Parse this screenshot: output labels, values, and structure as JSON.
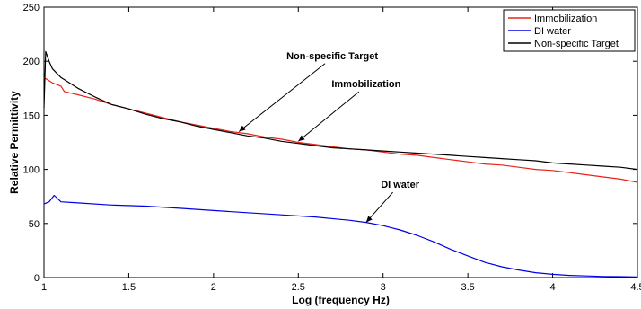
{
  "chart_data": {
    "type": "line",
    "title": "",
    "xlabel": "Log (frequency Hz)",
    "ylabel": "Relative Permittivity",
    "xlim": [
      1,
      4.5
    ],
    "ylim": [
      0,
      250
    ],
    "xticks": [
      1,
      1.5,
      2,
      2.5,
      3,
      3.5,
      4,
      4.5
    ],
    "xtick_labels": [
      "1",
      "1.5",
      "2",
      "2.5",
      "3",
      "3.5",
      "4",
      "4.5"
    ],
    "yticks": [
      0,
      50,
      100,
      150,
      200,
      250
    ],
    "ytick_labels": [
      "0",
      "50",
      "100",
      "150",
      "200",
      "250"
    ],
    "grid": false,
    "legend_position": "top-right",
    "series": [
      {
        "name": "Immobilization",
        "color": "#e8231c",
        "x": [
          1.0,
          1.05,
          1.1,
          1.12,
          1.2,
          1.3,
          1.4,
          1.5,
          1.6,
          1.7,
          1.8,
          1.9,
          2.0,
          2.1,
          2.2,
          2.3,
          2.4,
          2.5,
          2.6,
          2.7,
          2.8,
          2.9,
          3.0,
          3.1,
          3.2,
          3.3,
          3.4,
          3.5,
          3.6,
          3.7,
          3.8,
          3.9,
          4.0,
          4.1,
          4.2,
          4.3,
          4.4,
          4.5
        ],
        "y": [
          185,
          180,
          177,
          172,
          169,
          165,
          160,
          156,
          152,
          148,
          144,
          141,
          138,
          135,
          133,
          130,
          128,
          125,
          123,
          121,
          119,
          118,
          116,
          114,
          113,
          111,
          109,
          107,
          105,
          104,
          102,
          100,
          99,
          97,
          95,
          93,
          91,
          88
        ]
      },
      {
        "name": "DI water",
        "color": "#0000e6",
        "x": [
          1.0,
          1.03,
          1.06,
          1.1,
          1.2,
          1.4,
          1.6,
          1.8,
          2.0,
          2.2,
          2.4,
          2.6,
          2.8,
          2.9,
          3.0,
          3.1,
          3.2,
          3.3,
          3.4,
          3.5,
          3.6,
          3.7,
          3.8,
          3.9,
          4.0,
          4.1,
          4.2,
          4.3,
          4.4,
          4.5
        ],
        "y": [
          68,
          70,
          76,
          70,
          69,
          67,
          66,
          64,
          62,
          60,
          58,
          56,
          53,
          51,
          48,
          44,
          39,
          33,
          26,
          20,
          14,
          10,
          7,
          4.5,
          3,
          2,
          1.5,
          1,
          0.8,
          0.6
        ]
      },
      {
        "name": "Non-specific Target",
        "color": "#000000",
        "x": [
          1.0,
          1.01,
          1.03,
          1.05,
          1.1,
          1.2,
          1.3,
          1.4,
          1.5,
          1.6,
          1.7,
          1.8,
          1.9,
          2.0,
          2.1,
          2.2,
          2.3,
          2.4,
          2.5,
          2.6,
          2.7,
          2.8,
          2.9,
          3.0,
          3.1,
          3.2,
          3.3,
          3.4,
          3.5,
          3.6,
          3.7,
          3.8,
          3.9,
          4.0,
          4.1,
          4.2,
          4.3,
          4.4,
          4.5
        ],
        "y": [
          157,
          209,
          200,
          193,
          185,
          175,
          167,
          160,
          156,
          151,
          147,
          144,
          140,
          137,
          134,
          131,
          129,
          126,
          124,
          122,
          120,
          119,
          118,
          117,
          116,
          115,
          114,
          113,
          112,
          111,
          110,
          109,
          108,
          106,
          105,
          104,
          103,
          102,
          100
        ]
      }
    ],
    "annotations": [
      {
        "text": "Non-specific Target",
        "x": 2.7,
        "y": 202,
        "arrow_to_x": 2.15,
        "arrow_to_y": 135
      },
      {
        "text": "Immobilization",
        "x": 2.9,
        "y": 176,
        "arrow_to_x": 2.5,
        "arrow_to_y": 126
      },
      {
        "text": "DI water",
        "x": 3.1,
        "y": 83,
        "arrow_to_x": 2.9,
        "arrow_to_y": 51
      }
    ]
  }
}
